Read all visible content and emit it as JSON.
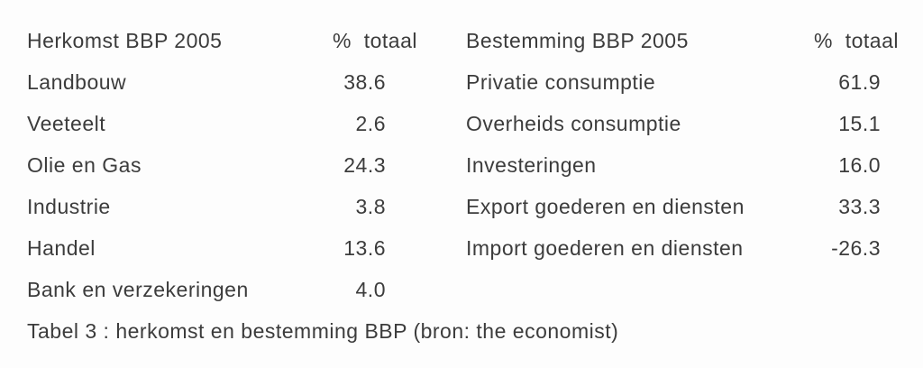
{
  "colors": {
    "text": "#3c3c3c",
    "background": "#fdfdfd"
  },
  "caption": "Tabel 3 : herkomst en bestemming BBP (bron: the economist)",
  "chart_data": [
    {
      "type": "table",
      "title": "Herkomst BBP 2005",
      "value_header": "%  totaal",
      "categories": [
        "Landbouw",
        "Veeteelt",
        "Olie en Gas",
        "Industrie",
        "Handel",
        "Bank en verzekeringen"
      ],
      "values": [
        38.6,
        2.6,
        24.3,
        3.8,
        13.6,
        4.0
      ]
    },
    {
      "type": "table",
      "title": "Bestemming BBP 2005",
      "value_header": "%  totaal",
      "categories": [
        "Privatie consumptie",
        "Overheids consumptie",
        "Investeringen",
        "Export goederen en diensten",
        "Import goederen en diensten"
      ],
      "values": [
        61.9,
        15.1,
        16.0,
        33.3,
        -26.3
      ]
    }
  ]
}
